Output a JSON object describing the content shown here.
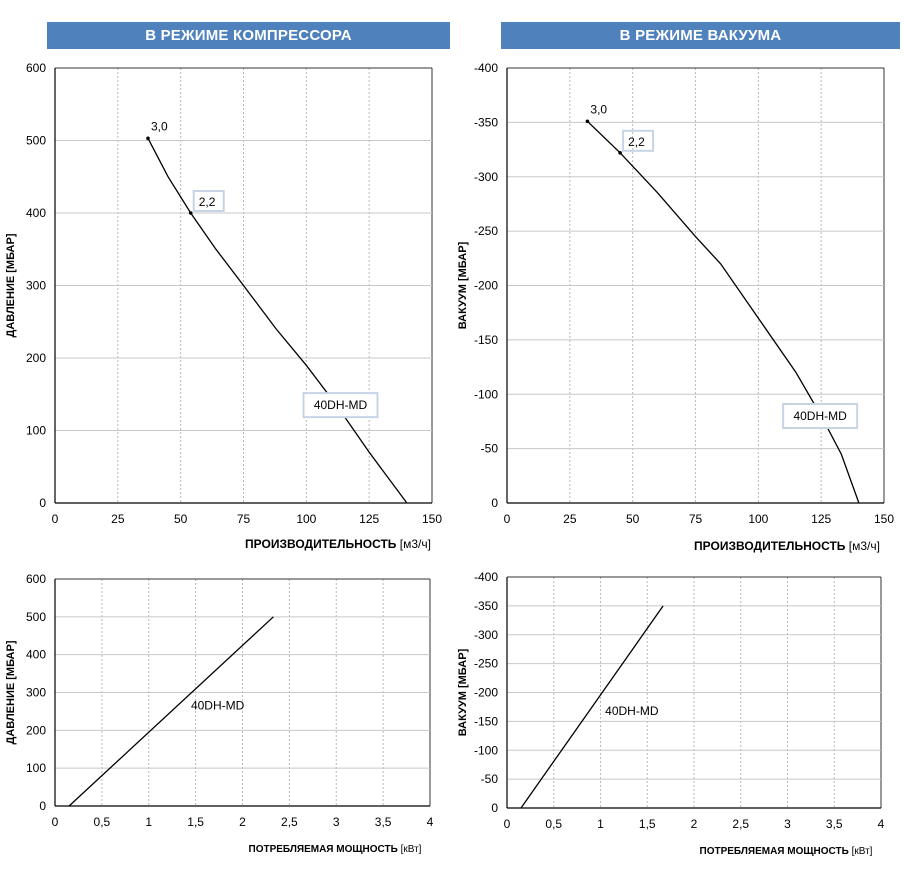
{
  "headers": {
    "left": "В РЕЖИМЕ КОМПРЕССОРА",
    "right": "В РЕЖИМЕ ВАКУУМА"
  },
  "chart_data": [
    {
      "id": "compressor-flow",
      "type": "line",
      "xlabel": "ПРОИЗВОДИТЕЛЬНОСТЬ",
      "xunit": "[м3/ч]",
      "ylabel": "ДАВЛЕНИЕ [МБАР]",
      "xlim": [
        0,
        150
      ],
      "ylim": [
        0,
        600
      ],
      "xticks": [
        "0",
        "25",
        "50",
        "75",
        "100",
        "125",
        "150"
      ],
      "yticks": [
        "0",
        "100",
        "200",
        "300",
        "400",
        "500",
        "600"
      ],
      "series": [
        {
          "name": "40DH-MD",
          "x": [
            140,
            125,
            112,
            100,
            88,
            75,
            64,
            54,
            45,
            37
          ],
          "y": [
            0,
            70,
            135,
            190,
            240,
            300,
            350,
            400,
            450,
            503
          ]
        }
      ],
      "labels": [
        {
          "text": "3,0",
          "x": 37,
          "y": 503,
          "boxed": false
        },
        {
          "text": "2,2",
          "x": 54,
          "y": 400,
          "boxed": true
        },
        {
          "text": "40DH-MD",
          "x": 112,
          "y": 135,
          "boxed": true
        }
      ]
    },
    {
      "id": "vacuum-flow",
      "type": "line",
      "xlabel": "ПРОИЗВОДИТЕЛЬНОСТЬ",
      "xunit": "[м3/ч]",
      "ylabel": "ВАКУУМ [МБАР]",
      "xlim": [
        0,
        150
      ],
      "ylim": [
        0,
        -400
      ],
      "xticks": [
        "0",
        "25",
        "50",
        "75",
        "100",
        "125",
        "150"
      ],
      "yticks": [
        "0",
        "-50",
        "-100",
        "-150",
        "-200",
        "-250",
        "-300",
        "-350",
        "-400"
      ],
      "series": [
        {
          "name": "40DH-MD",
          "x": [
            140,
            133,
            125,
            115,
            100,
            85,
            75,
            60,
            45,
            32
          ],
          "y": [
            0,
            -45,
            -80,
            -120,
            -170,
            -220,
            -245,
            -285,
            -322,
            -351
          ]
        }
      ],
      "labels": [
        {
          "text": "3,0",
          "x": 32,
          "y": -351,
          "boxed": false
        },
        {
          "text": "2,2",
          "x": 45,
          "y": -322,
          "boxed": true
        },
        {
          "text": "40DH-MD",
          "x": 123,
          "y": -80,
          "boxed": true
        }
      ]
    },
    {
      "id": "compressor-power",
      "type": "line",
      "xlabel": "ПОТРЕБЛЯЕМАЯ МОЩНОСТЬ",
      "xunit": "[кВт]",
      "ylabel": "ДАВЛЕНИЕ [МБАР]",
      "xlim": [
        0,
        4
      ],
      "ylim": [
        0,
        600
      ],
      "xticks": [
        "0",
        "0,5",
        "1",
        "1,5",
        "2",
        "2,5",
        "3",
        "3,5",
        "4"
      ],
      "yticks": [
        "0",
        "100",
        "200",
        "300",
        "400",
        "500",
        "600"
      ],
      "series": [
        {
          "name": "40DH-MD",
          "x": [
            0.15,
            2.33
          ],
          "y": [
            0,
            500
          ]
        }
      ],
      "labels": [
        {
          "text": "40DH-MD",
          "x": 1.45,
          "y": 265,
          "boxed": false
        }
      ]
    },
    {
      "id": "vacuum-power",
      "type": "line",
      "xlabel": "ПОТРЕБЛЯЕМАЯ МОЩНОСТЬ",
      "xunit": "[кВт]",
      "ylabel": "ВАКУУМ [МБАР]",
      "xlim": [
        0,
        4
      ],
      "ylim": [
        0,
        -400
      ],
      "xticks": [
        "0",
        "0,5",
        "1",
        "1,5",
        "2",
        "2,5",
        "3",
        "3,5",
        "4"
      ],
      "yticks": [
        "0",
        "-50",
        "-100",
        "-150",
        "-200",
        "-250",
        "-300",
        "-350",
        "-400"
      ],
      "series": [
        {
          "name": "40DH-MD",
          "x": [
            0.15,
            1.67
          ],
          "y": [
            0,
            -350
          ]
        }
      ],
      "labels": [
        {
          "text": "40DH-MD",
          "x": 1.05,
          "y": -168,
          "boxed": false
        }
      ]
    }
  ]
}
